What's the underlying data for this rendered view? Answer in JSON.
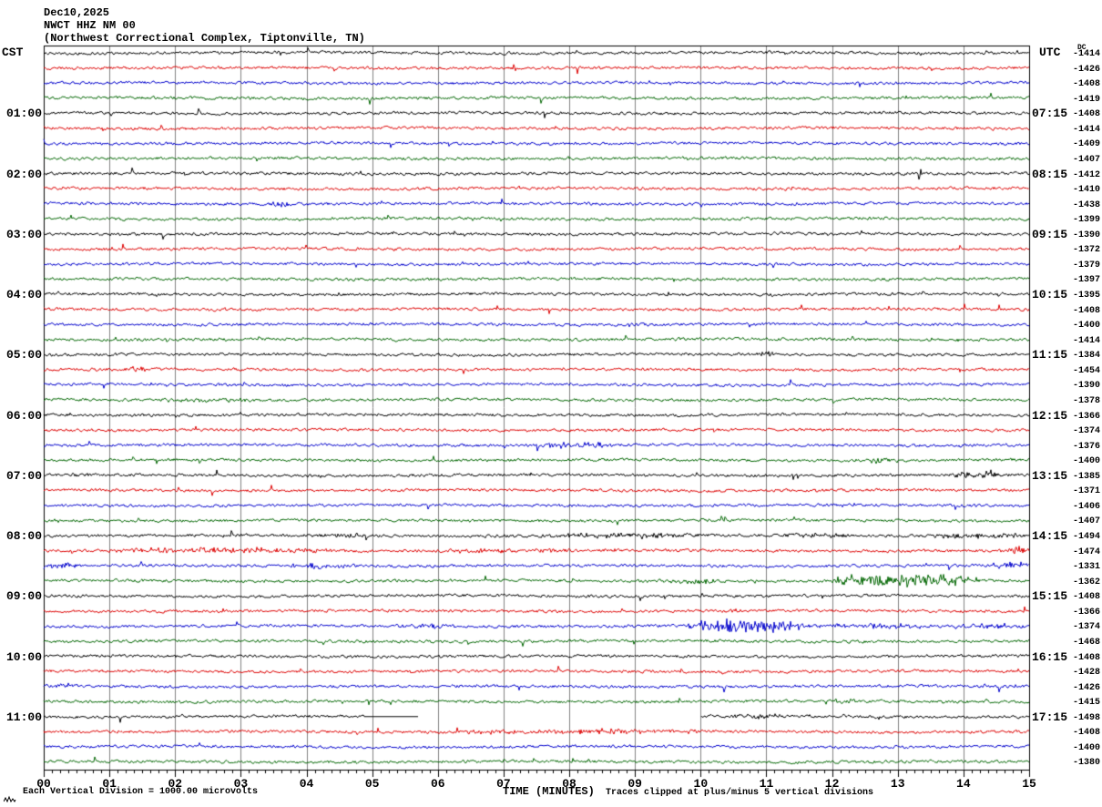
{
  "title": {
    "date": "Dec10,2025",
    "station": "NWCT HHZ NM 00",
    "location": "(Northwest Correctional Complex, Tiptonville, TN)"
  },
  "axes": {
    "left_header": "CST",
    "right_header": "UTC",
    "dc_header": "DC",
    "x_title": "TIME (MINUTES)",
    "x_ticks": [
      "00",
      "01",
      "02",
      "03",
      "04",
      "05",
      "06",
      "07",
      "08",
      "09",
      "10",
      "11",
      "12",
      "13",
      "14",
      "15"
    ]
  },
  "footer": {
    "division_note": "Each Vertical Division = 1000.00 microvolts",
    "clip_note": "Traces clipped at plus/minus 5 vertical divisions"
  },
  "chart_data": {
    "type": "line",
    "title": "NWCT HHZ NM 00 webicorder seismogram, Dec10,2025",
    "xlabel": "TIME (MINUTES)",
    "x_range": [
      0,
      15
    ],
    "minutes_per_row": 15,
    "grid": "vertical gridlines each minute",
    "minor_ticks_per_minute": 8,
    "trace_colors": {
      "black": "#000000",
      "red": "#dd0000",
      "blue": "#0000cc",
      "green": "#006600"
    },
    "grid_color": "#808080",
    "rows": [
      {
        "color": "black",
        "dc": -1414
      },
      {
        "color": "red",
        "dc": -1426
      },
      {
        "color": "blue",
        "dc": -1408
      },
      {
        "color": "green",
        "dc": -1419
      },
      {
        "color": "black",
        "dc": -1408,
        "cst": "01:00",
        "utc": "07:15"
      },
      {
        "color": "red",
        "dc": -1414
      },
      {
        "color": "blue",
        "dc": -1409
      },
      {
        "color": "green",
        "dc": -1407
      },
      {
        "color": "black",
        "dc": -1412,
        "cst": "02:00",
        "utc": "08:15"
      },
      {
        "color": "red",
        "dc": -1410
      },
      {
        "color": "blue",
        "dc": -1438
      },
      {
        "color": "green",
        "dc": -1399
      },
      {
        "color": "black",
        "dc": -1390,
        "cst": "03:00",
        "utc": "09:15"
      },
      {
        "color": "red",
        "dc": -1372
      },
      {
        "color": "blue",
        "dc": -1379
      },
      {
        "color": "green",
        "dc": -1397
      },
      {
        "color": "black",
        "dc": -1395,
        "cst": "04:00",
        "utc": "10:15"
      },
      {
        "color": "red",
        "dc": -1408
      },
      {
        "color": "blue",
        "dc": -1400
      },
      {
        "color": "green",
        "dc": -1414
      },
      {
        "color": "black",
        "dc": -1384,
        "cst": "05:00",
        "utc": "11:15"
      },
      {
        "color": "red",
        "dc": -1454
      },
      {
        "color": "blue",
        "dc": -1390
      },
      {
        "color": "green",
        "dc": -1378
      },
      {
        "color": "black",
        "dc": -1366,
        "cst": "06:00",
        "utc": "12:15"
      },
      {
        "color": "red",
        "dc": -1374
      },
      {
        "color": "blue",
        "dc": -1376
      },
      {
        "color": "green",
        "dc": -1400
      },
      {
        "color": "black",
        "dc": -1385,
        "cst": "07:00",
        "utc": "13:15"
      },
      {
        "color": "red",
        "dc": -1371
      },
      {
        "color": "blue",
        "dc": -1406
      },
      {
        "color": "green",
        "dc": -1407
      },
      {
        "color": "black",
        "dc": -1494,
        "cst": "08:00",
        "utc": "14:15"
      },
      {
        "color": "red",
        "dc": -1474
      },
      {
        "color": "blue",
        "dc": -1331
      },
      {
        "color": "green",
        "dc": -1362
      },
      {
        "color": "black",
        "dc": -1408,
        "cst": "09:00",
        "utc": "15:15"
      },
      {
        "color": "red",
        "dc": -1366
      },
      {
        "color": "blue",
        "dc": -1374
      },
      {
        "color": "green",
        "dc": -1468
      },
      {
        "color": "black",
        "dc": -1408,
        "cst": "10:00",
        "utc": "16:15"
      },
      {
        "color": "red",
        "dc": -1428
      },
      {
        "color": "blue",
        "dc": -1426
      },
      {
        "color": "green",
        "dc": -1415
      },
      {
        "color": "black",
        "dc": -1498,
        "cst": "11:00",
        "utc": "17:15"
      },
      {
        "color": "red",
        "dc": -1408
      },
      {
        "color": "blue",
        "dc": -1400
      },
      {
        "color": "green",
        "dc": -1380
      }
    ],
    "events": [
      {
        "row": 11,
        "start": 3.45,
        "end": 3.75,
        "amp": 4
      },
      {
        "row": 21,
        "start": 10.8,
        "end": 11.15,
        "amp": 2.2
      },
      {
        "row": 22,
        "start": 0.8,
        "end": 1.9,
        "amp": 1.8
      },
      {
        "row": 24,
        "start": 1.5,
        "end": 3.2,
        "amp": 1.6
      },
      {
        "row": 27,
        "start": 7.55,
        "end": 8.7,
        "amp": 3
      },
      {
        "row": 28,
        "start": 12.3,
        "end": 13.2,
        "amp": 1.8
      },
      {
        "row": 29,
        "start": 0.2,
        "end": 0.9,
        "amp": 1.8
      },
      {
        "row": 29,
        "start": 13.7,
        "end": 14.7,
        "amp": 3.5
      },
      {
        "row": 33,
        "start": 4.0,
        "end": 5.1,
        "amp": 2
      },
      {
        "row": 33,
        "start": 7.3,
        "end": 10.2,
        "amp": 2.2
      },
      {
        "row": 33,
        "start": 11.2,
        "end": 12.5,
        "amp": 1.8
      },
      {
        "row": 33,
        "start": 13.4,
        "end": 15,
        "amp": 2.4
      },
      {
        "row": 34,
        "start": 0.8,
        "end": 4.6,
        "amp": 2.4
      },
      {
        "row": 34,
        "start": 5.5,
        "end": 9.0,
        "amp": 1.6
      },
      {
        "row": 34,
        "start": 14.55,
        "end": 15,
        "amp": 4
      },
      {
        "row": 35,
        "start": 0.0,
        "end": 0.6,
        "amp": 3
      },
      {
        "row": 35,
        "start": 3.6,
        "end": 4.8,
        "amp": 2.2
      },
      {
        "row": 35,
        "start": 14.4,
        "end": 15,
        "amp": 3.2
      },
      {
        "row": 36,
        "start": 9.3,
        "end": 10.4,
        "amp": 2.2
      },
      {
        "row": 36,
        "start": 11.9,
        "end": 14.3,
        "amp": 6.5
      },
      {
        "row": 38,
        "start": 10.3,
        "end": 10.7,
        "amp": 1.8
      },
      {
        "row": 39,
        "start": 5.3,
        "end": 6.3,
        "amp": 1.8
      },
      {
        "row": 39,
        "start": 9.75,
        "end": 11.7,
        "amp": 7
      },
      {
        "row": 39,
        "start": 11.7,
        "end": 13.6,
        "amp": 2.2
      },
      {
        "row": 39,
        "start": 13.6,
        "end": 15,
        "amp": 2.6
      },
      {
        "row": 43,
        "start": 0.15,
        "end": 0.5,
        "amp": 2
      },
      {
        "row": 44,
        "start": 11.95,
        "end": 12.45,
        "amp": 2.8
      },
      {
        "row": 45,
        "start": 10.4,
        "end": 11.3,
        "amp": 2
      },
      {
        "row": 46,
        "start": 6.2,
        "end": 10.3,
        "amp": 2.2
      }
    ],
    "gaps": [
      {
        "row": 45,
        "flat": [
          4.88,
          5.7
        ],
        "blank": [
          5.7,
          10.0
        ]
      }
    ]
  }
}
